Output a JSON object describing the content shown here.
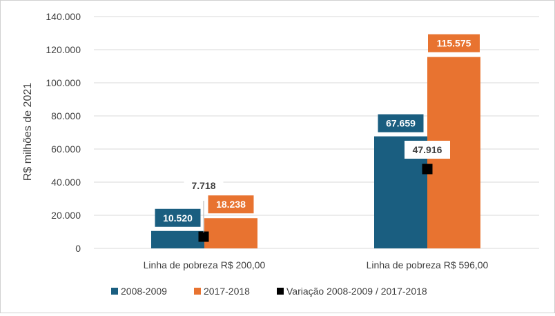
{
  "chart_data": {
    "type": "bar",
    "ylabel": "R$ milhões de 2021",
    "ylim": [
      0,
      140000
    ],
    "yticks": [
      0,
      20000,
      40000,
      60000,
      80000,
      100000,
      120000,
      140000
    ],
    "ytick_labels": [
      "0",
      "20.000",
      "40.000",
      "60.000",
      "80.000",
      "100.000",
      "120.000",
      "140.000"
    ],
    "grid": true,
    "legend_position": "bottom",
    "categories": [
      "Linha de pobreza R$ 200,00",
      "Linha de pobreza R$ 596,00"
    ],
    "series": [
      {
        "name": "2008-2009",
        "kind": "bar",
        "color": "#1a5e80",
        "values": [
          10520,
          67659
        ],
        "labels": [
          "10.520",
          "67.659"
        ]
      },
      {
        "name": "2017-2018",
        "kind": "bar",
        "color": "#e87330",
        "values": [
          18238,
          115575
        ],
        "labels": [
          "18.238",
          "115.575"
        ]
      },
      {
        "name": "Variação 2008-2009 / 2017-2018",
        "kind": "marker",
        "color": "#000000",
        "values": [
          7718,
          47916
        ],
        "labels": [
          "7.718",
          "47.916"
        ]
      }
    ]
  }
}
